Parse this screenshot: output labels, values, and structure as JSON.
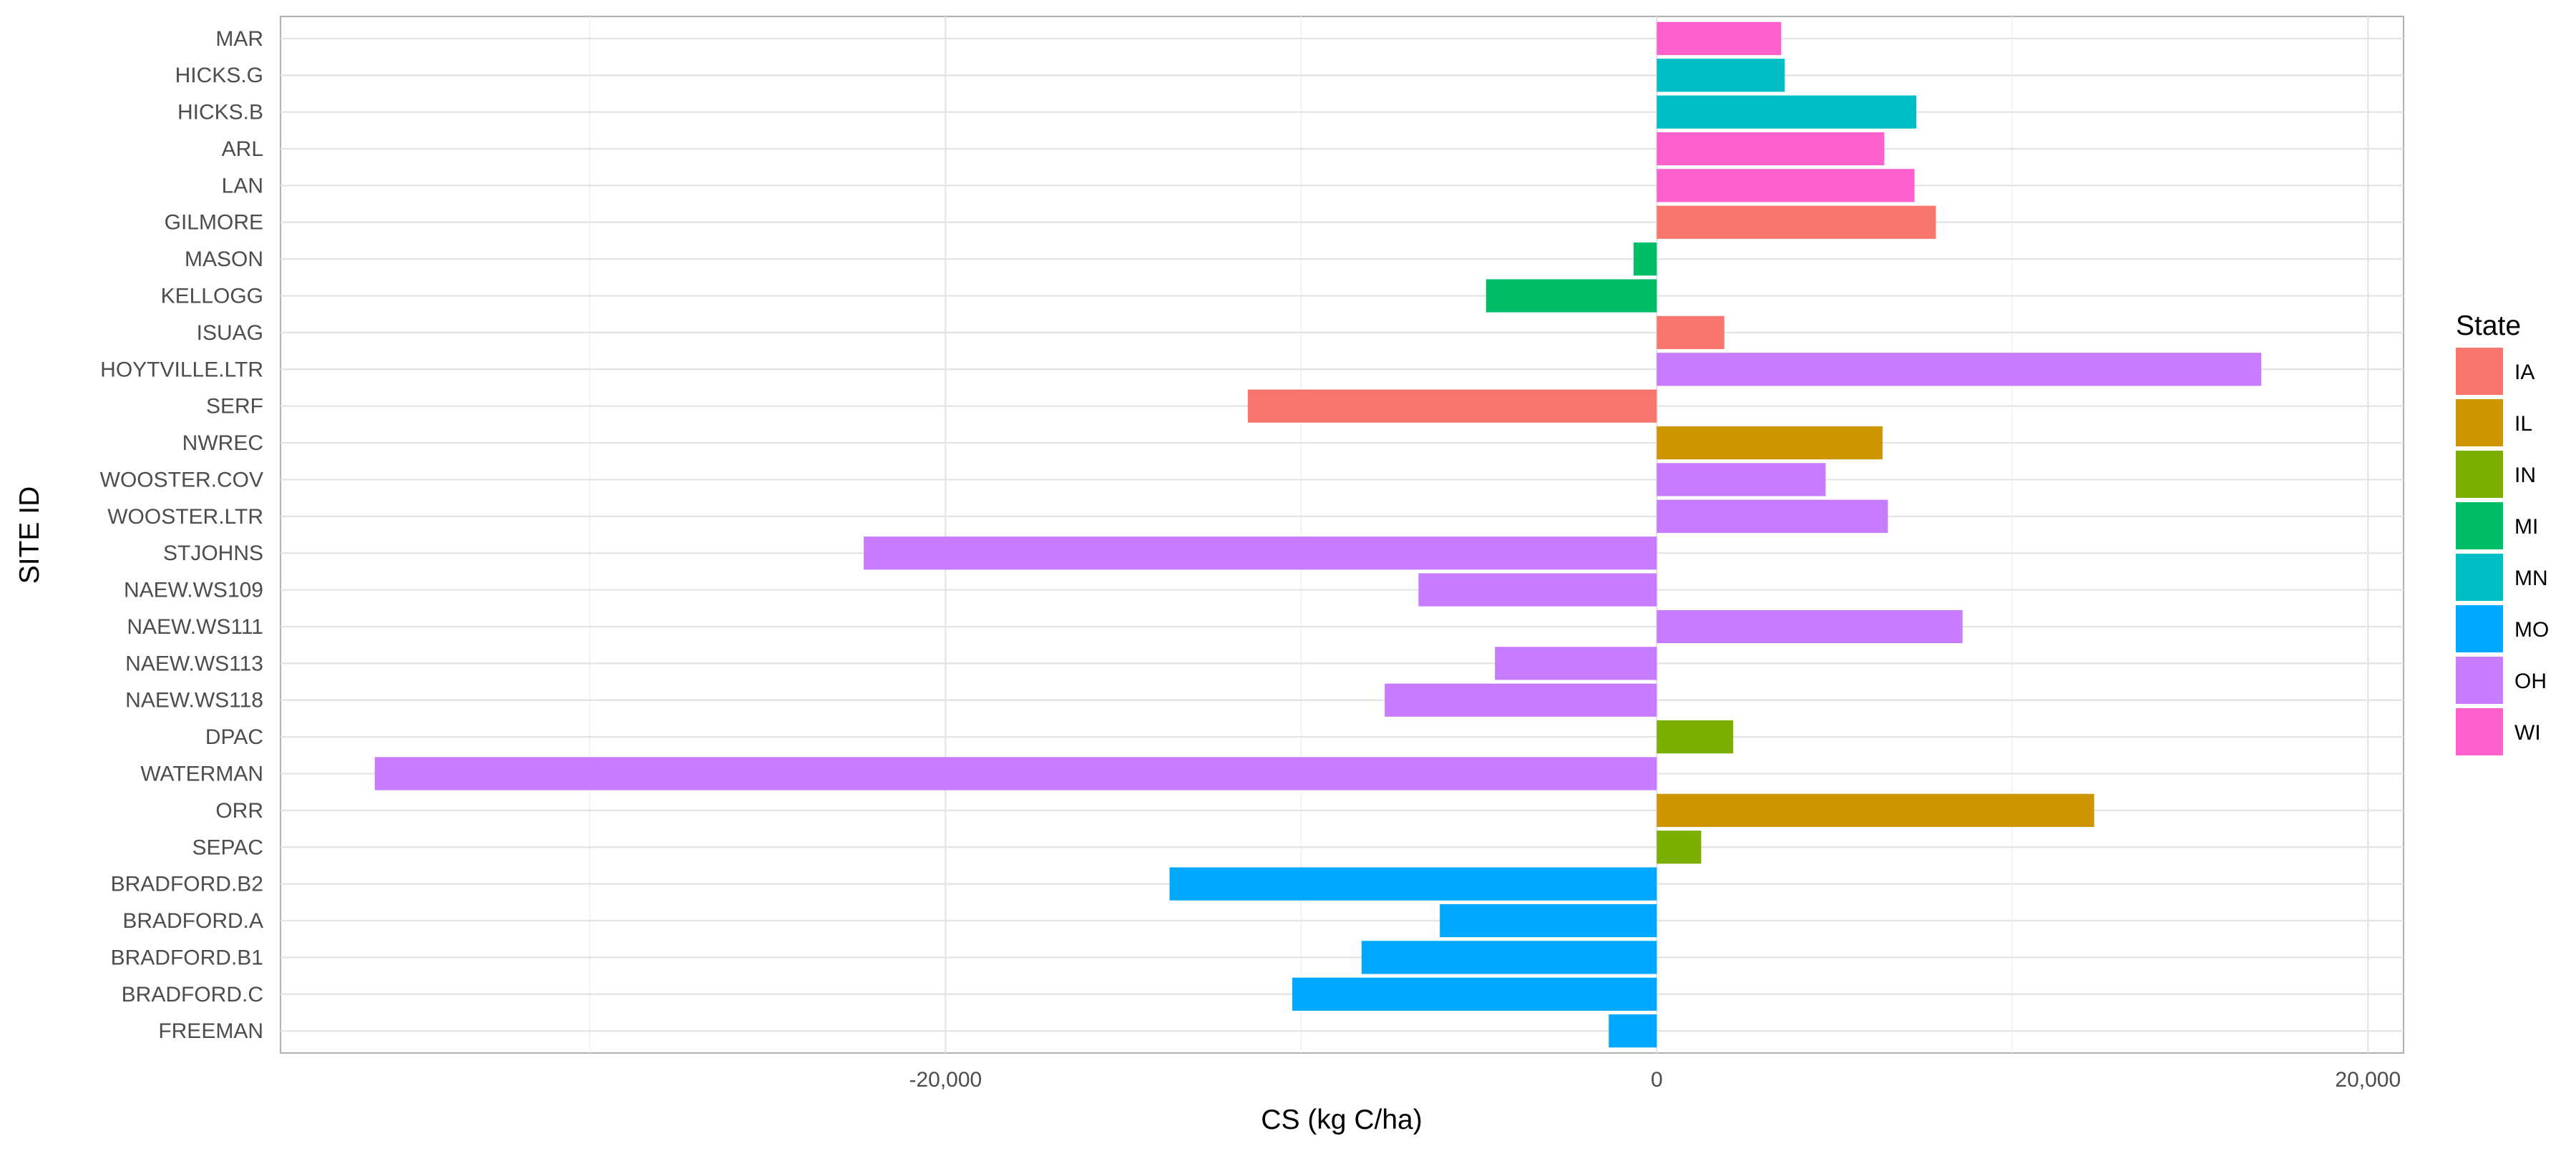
{
  "chart_data": {
    "type": "bar",
    "orientation": "horizontal",
    "xlabel": "CS (kg C/ha)",
    "ylabel": "SITE ID",
    "xlim": [
      -38700,
      21000
    ],
    "x_ticks": [
      -20000,
      0,
      20000
    ],
    "x_tick_labels": [
      "-20,000",
      "0",
      "20,000"
    ],
    "grid": true,
    "legend": {
      "title": "State",
      "placement": "right",
      "entries": [
        {
          "label": "IA",
          "color": "#F8766D"
        },
        {
          "label": "IL",
          "color": "#CD9600"
        },
        {
          "label": "IN",
          "color": "#7CAE00"
        },
        {
          "label": "MI",
          "color": "#00BE67"
        },
        {
          "label": "MN",
          "color": "#00BFC4"
        },
        {
          "label": "MO",
          "color": "#00A9FF"
        },
        {
          "label": "OH",
          "color": "#C77CFF"
        },
        {
          "label": "WI",
          "color": "#FF61CC"
        }
      ]
    },
    "bars": [
      {
        "site": "MAR",
        "value": 3500,
        "state": "WI"
      },
      {
        "site": "HICKS.G",
        "value": 3600,
        "state": "MN"
      },
      {
        "site": "HICKS.B",
        "value": 7300,
        "state": "MN"
      },
      {
        "site": "ARL",
        "value": 6400,
        "state": "WI"
      },
      {
        "site": "LAN",
        "value": 7250,
        "state": "WI"
      },
      {
        "site": "GILMORE",
        "value": 7850,
        "state": "IA"
      },
      {
        "site": "MASON",
        "value": -650,
        "state": "MI"
      },
      {
        "site": "KELLOGG",
        "value": -4800,
        "state": "MI"
      },
      {
        "site": "ISUAG",
        "value": 1900,
        "state": "IA"
      },
      {
        "site": "HOYTVILLE.LTR",
        "value": 17000,
        "state": "OH"
      },
      {
        "site": "SERF",
        "value": -11500,
        "state": "IA"
      },
      {
        "site": "NWREC",
        "value": 6350,
        "state": "IL"
      },
      {
        "site": "WOOSTER.COV",
        "value": 4750,
        "state": "OH"
      },
      {
        "site": "WOOSTER.LTR",
        "value": 6500,
        "state": "OH"
      },
      {
        "site": "STJOHNS",
        "value": -22300,
        "state": "OH"
      },
      {
        "site": "NAEW.WS109",
        "value": -6700,
        "state": "OH"
      },
      {
        "site": "NAEW.WS111",
        "value": 8600,
        "state": "OH"
      },
      {
        "site": "NAEW.WS113",
        "value": -4550,
        "state": "OH"
      },
      {
        "site": "NAEW.WS118",
        "value": -7650,
        "state": "OH"
      },
      {
        "site": "DPAC",
        "value": 2150,
        "state": "IN"
      },
      {
        "site": "WATERMAN",
        "value": -36050,
        "state": "OH"
      },
      {
        "site": "ORR",
        "value": 12300,
        "state": "IL"
      },
      {
        "site": "SEPAC",
        "value": 1250,
        "state": "IN"
      },
      {
        "site": "BRADFORD.B2",
        "value": -13700,
        "state": "MO"
      },
      {
        "site": "BRADFORD.A",
        "value": -6100,
        "state": "MO"
      },
      {
        "site": "BRADFORD.B1",
        "value": -8300,
        "state": "MO"
      },
      {
        "site": "BRADFORD.C",
        "value": -10250,
        "state": "MO"
      },
      {
        "site": "FREEMAN",
        "value": -1350,
        "state": "MO"
      }
    ]
  }
}
